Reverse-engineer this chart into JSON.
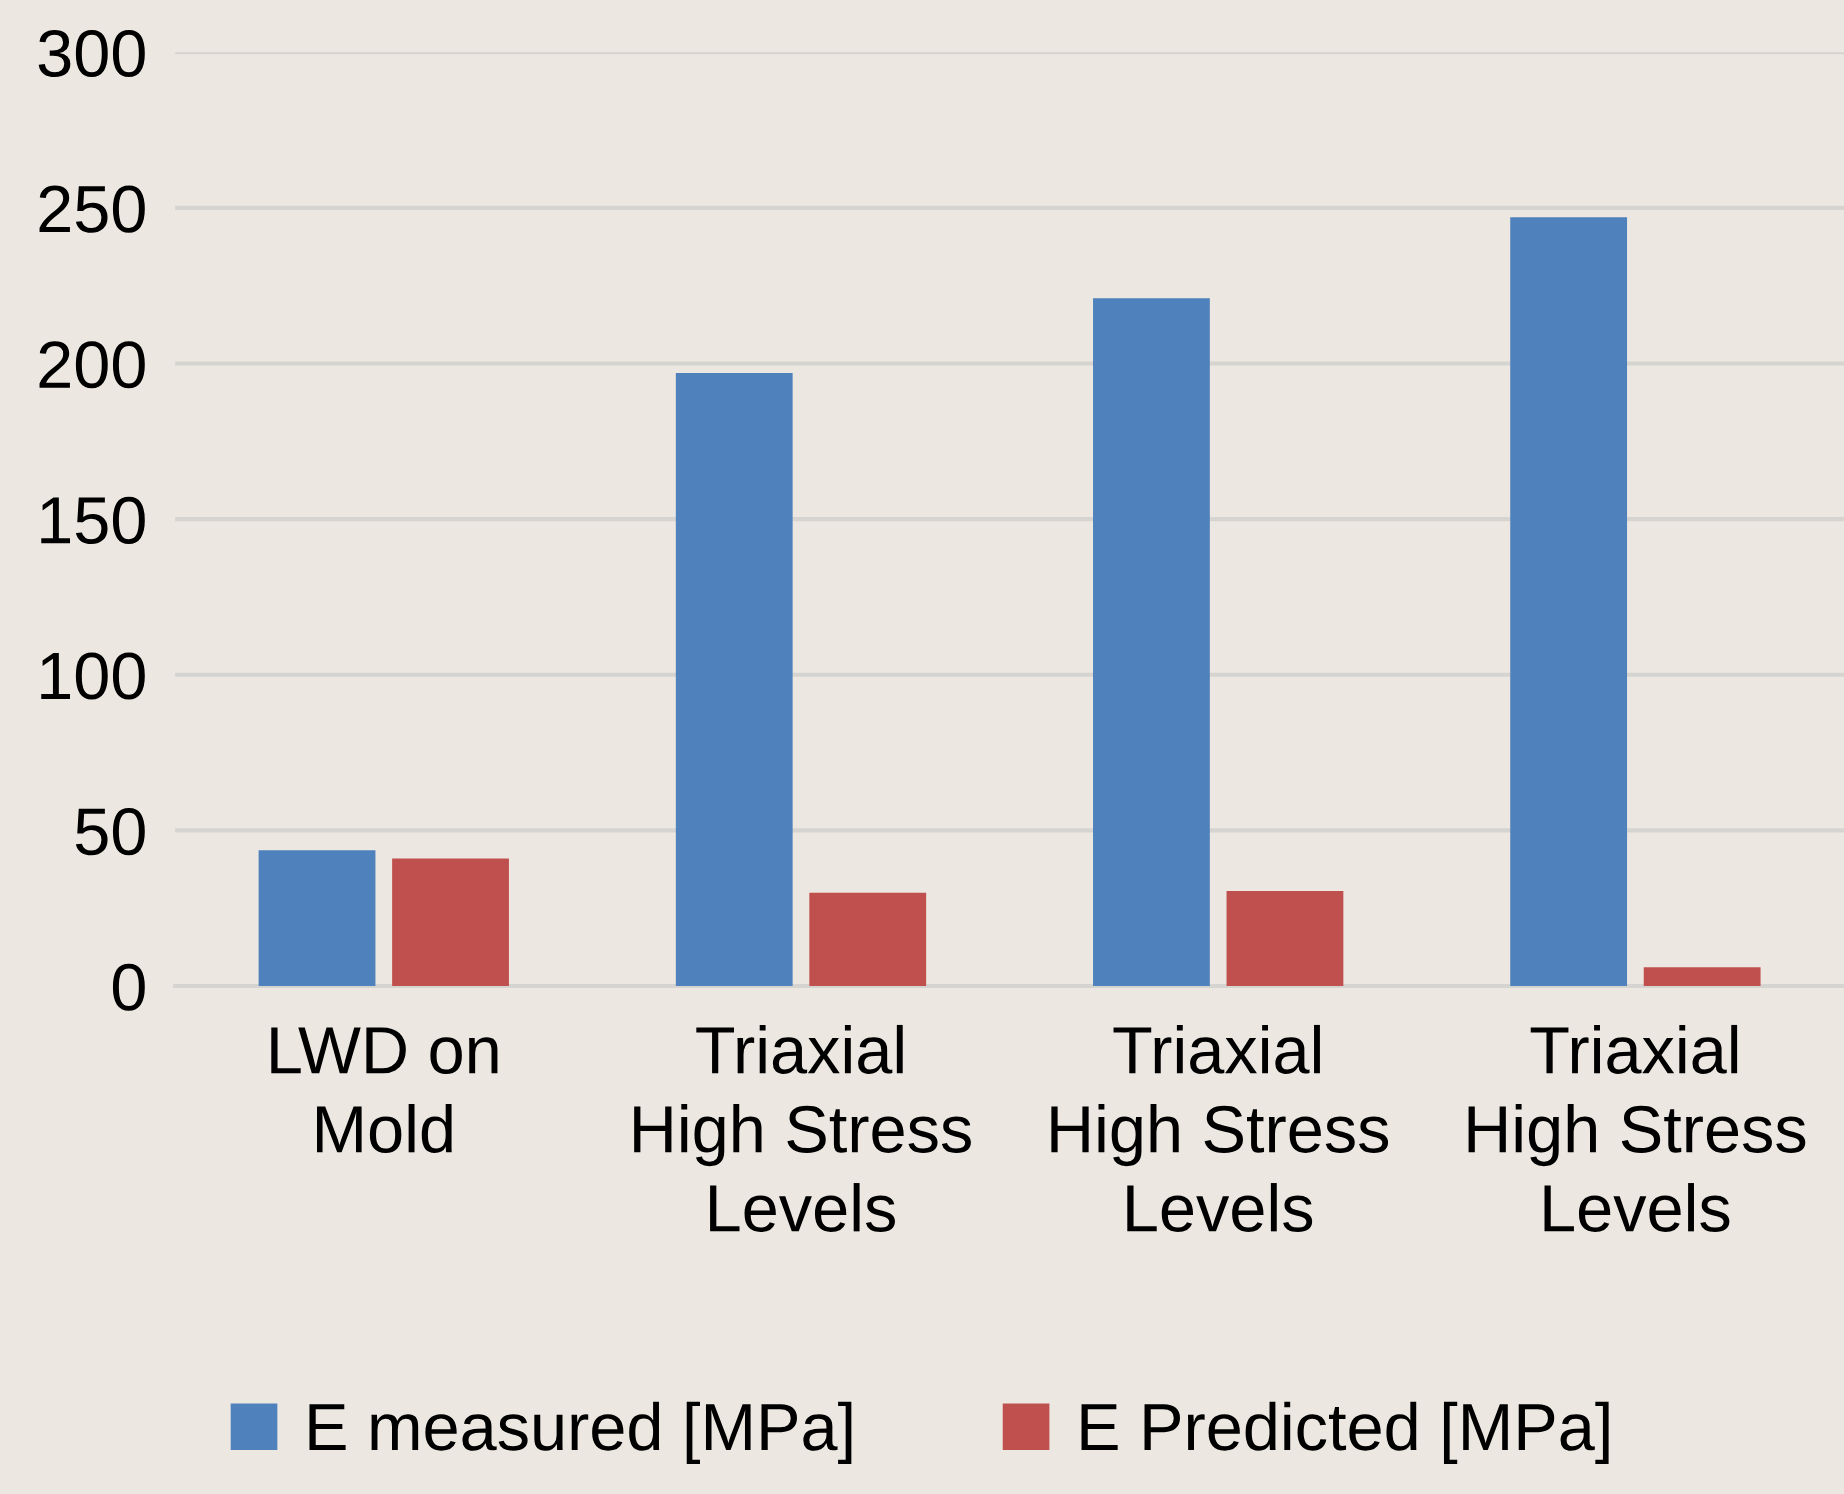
{
  "chart_data": {
    "type": "bar",
    "categories": [
      "LWD on\nMold",
      "Triaxial\nHigh Stress\nLevels",
      "Triaxial\nHigh Stress\nLevels",
      "Triaxial\nHigh Stress\nLevels"
    ],
    "series": [
      {
        "name": "E measured [MPa]",
        "color": "#4f81bd",
        "values": [
          43.6,
          197,
          221,
          247
        ]
      },
      {
        "name": "E Predicted [MPa]",
        "color": "#c0504d",
        "values": [
          41,
          30,
          30.5,
          6
        ]
      }
    ],
    "ylim": [
      0,
      300
    ],
    "yticks": [
      0,
      50,
      100,
      150,
      200,
      250,
      300
    ],
    "grid": "y",
    "legend": "bottom"
  }
}
